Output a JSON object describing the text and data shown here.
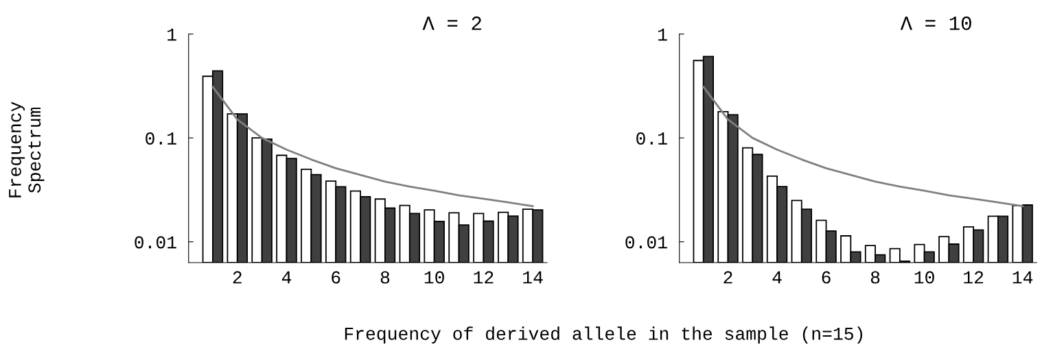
{
  "chart_data": [
    {
      "type": "bar",
      "title": "Λ = 2",
      "ylabel": "Frequency\nSpectrum",
      "xlabel": "Frequency of derived allele in the sample (n=15)",
      "x": [
        1,
        2,
        3,
        4,
        5,
        6,
        7,
        8,
        9,
        10,
        11,
        12,
        13,
        14
      ],
      "log": "y",
      "xlim": [
        0.02,
        14.58
      ],
      "ylim": [
        0.0063,
        1
      ],
      "xticks": [
        2,
        4,
        6,
        8,
        10,
        12,
        14
      ],
      "yticks": [
        0.01,
        0.1,
        1
      ],
      "grid": false,
      "legend": false,
      "series": [
        {
          "color": "#ffffff",
          "values": [
            0.392,
            0.17,
            0.1,
            0.068,
            0.0499,
            0.0384,
            0.0308,
            0.0258,
            0.0224,
            0.0203,
            0.019,
            0.0187,
            0.0192,
            0.0206
          ]
        },
        {
          "color": "#404040",
          "values": [
            0.442,
            0.17,
            0.0974,
            0.0634,
            0.0444,
            0.0339,
            0.0272,
            0.0211,
            0.0187,
            0.0157,
            0.0145,
            0.0158,
            0.0177,
            0.0203
          ]
        },
        {
          "type": "line",
          "color": "#808080",
          "values": [
            0.31,
            0.15,
            0.1,
            0.077,
            0.062,
            0.051,
            0.044,
            0.038,
            0.034,
            0.031,
            0.028,
            0.026,
            0.024,
            0.022
          ]
        }
      ]
    },
    {
      "type": "bar",
      "title": "Λ = 10",
      "x": [
        1,
        2,
        3,
        4,
        5,
        6,
        7,
        8,
        9,
        10,
        11,
        12,
        13,
        14
      ],
      "log": "y",
      "xlim": [
        0.02,
        14.58
      ],
      "ylim": [
        0.0063,
        1
      ],
      "xticks": [
        2,
        4,
        6,
        8,
        10,
        12,
        14
      ],
      "yticks": [
        0.01,
        0.1,
        1
      ],
      "grid": false,
      "legend": false,
      "series": [
        {
          "color": "#ffffff",
          "values": [
            0.556,
            0.179,
            0.0803,
            0.0428,
            0.025,
            0.0161,
            0.0114,
            0.0092,
            0.0086,
            0.0094,
            0.0112,
            0.0139,
            0.0176,
            0.0223
          ]
        },
        {
          "color": "#404040",
          "values": [
            0.608,
            0.167,
            0.0693,
            0.034,
            0.0206,
            0.0127,
            0.008,
            0.0075,
            0.0065,
            0.008,
            0.0095,
            0.013,
            0.0176,
            0.0226
          ]
        },
        {
          "type": "line",
          "color": "#808080",
          "values": [
            0.31,
            0.15,
            0.1,
            0.077,
            0.062,
            0.051,
            0.044,
            0.038,
            0.034,
            0.031,
            0.028,
            0.026,
            0.024,
            0.022
          ]
        }
      ]
    }
  ]
}
